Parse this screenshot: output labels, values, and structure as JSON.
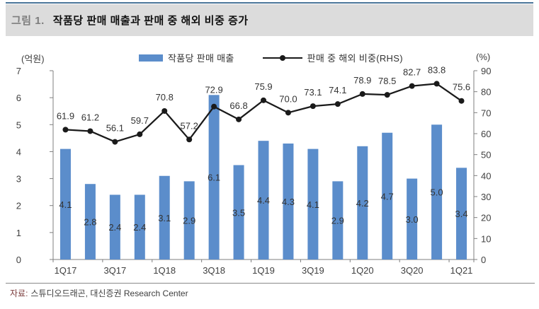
{
  "figure": {
    "label": "그림 1.",
    "title": "작품당 판매 매출과 판매 중 해외 비중 증가"
  },
  "footer": {
    "source_label": "자료:",
    "source_text": "스튜디오드래곤, 대신증권 Research Center"
  },
  "colors": {
    "bar": "#5b8dcb",
    "line": "#1a1a1a",
    "axis": "#7f7f7f",
    "tick_text": "#404040",
    "data_label": "#333333",
    "accent_rule": "#4a7699"
  },
  "chart_data": {
    "type": "bar",
    "subtype": "bar+line-combo",
    "grid": false,
    "legend_position": "top",
    "left_axis": {
      "unit": "(억원)",
      "min": 0,
      "max": 7,
      "step": 1
    },
    "right_axis": {
      "unit": "(%)",
      "min": 0,
      "max": 90,
      "step": 10
    },
    "categories": [
      "1Q17",
      "2Q17",
      "3Q17",
      "4Q17",
      "1Q18",
      "2Q18",
      "3Q18",
      "4Q18",
      "1Q19",
      "2Q19",
      "3Q19",
      "4Q19",
      "1Q20",
      "2Q20",
      "3Q20",
      "4Q20",
      "1Q21"
    ],
    "x_tick_labels": [
      "1Q17",
      "3Q17",
      "1Q18",
      "3Q18",
      "1Q19",
      "3Q19",
      "1Q20",
      "3Q20",
      "1Q21"
    ],
    "series": [
      {
        "name": "작품당 판매 매출",
        "type": "bar",
        "axis": "left",
        "values": [
          4.1,
          2.8,
          2.4,
          2.4,
          3.1,
          2.9,
          6.1,
          3.5,
          4.4,
          4.3,
          4.1,
          2.9,
          4.2,
          4.7,
          3.0,
          5.0,
          3.4
        ]
      },
      {
        "name": "판매 중 해외 비중(RHS)",
        "type": "line",
        "axis": "right",
        "values": [
          61.9,
          61.2,
          56.1,
          59.7,
          70.8,
          57.2,
          72.9,
          66.8,
          75.9,
          70.0,
          73.1,
          74.1,
          78.9,
          78.5,
          82.7,
          83.8,
          75.6
        ]
      }
    ]
  }
}
